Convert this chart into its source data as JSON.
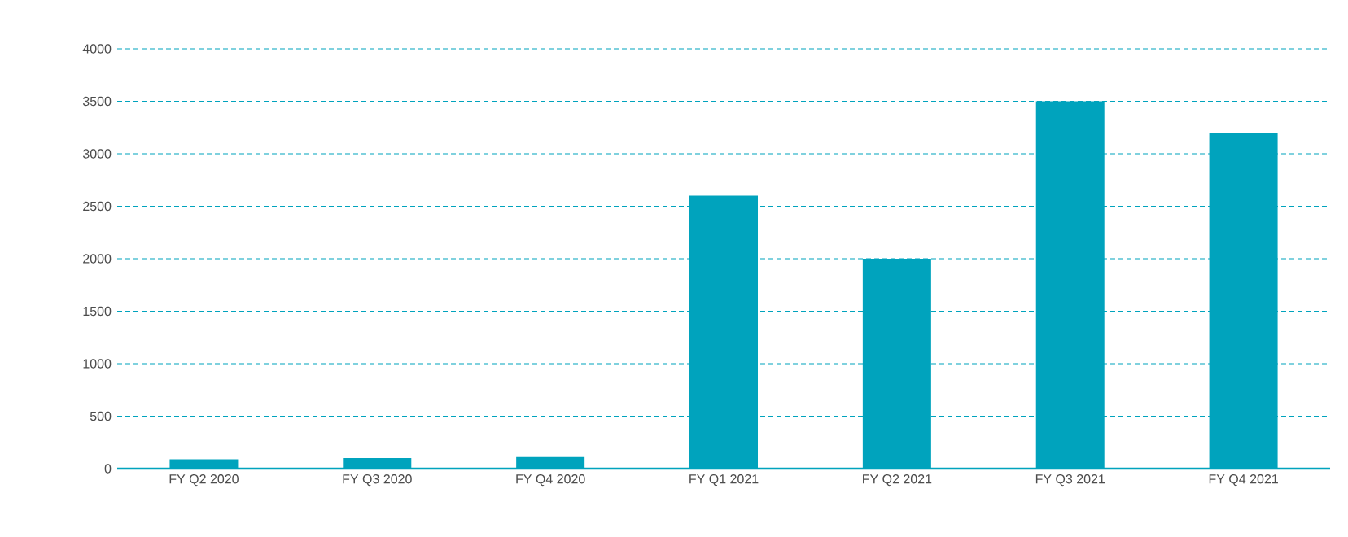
{
  "chart_data": {
    "type": "bar",
    "categories": [
      "FY Q2 2020",
      "FY Q3 2020",
      "FY Q4 2020",
      "FY Q1 2021",
      "FY Q2 2021",
      "FY Q3 2021",
      "FY Q4 2021"
    ],
    "values": [
      90,
      100,
      110,
      2600,
      2000,
      3500,
      3200
    ],
    "color": "#00a3bd",
    "ylim": [
      0,
      4000
    ],
    "yticks": [
      0,
      500,
      1000,
      1500,
      2000,
      2500,
      3000,
      3500,
      4000
    ],
    "grid": "y"
  }
}
